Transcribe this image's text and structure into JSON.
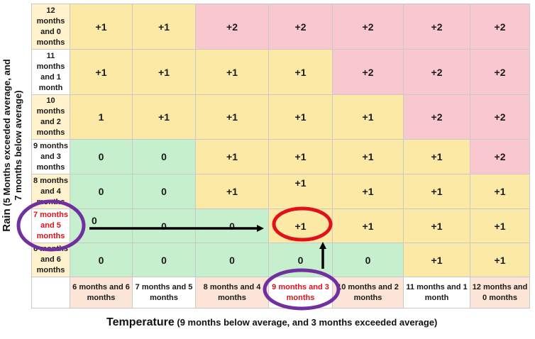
{
  "y_axis": {
    "title": "Rain",
    "subtitle_line1": "(5 Months exceeded average, and",
    "subtitle_line2": "7 months below average)"
  },
  "x_axis": {
    "title": "Temperature",
    "subtitle": "(9 months below average, and 3 months exceeded average)"
  },
  "row_labels": [
    "12 months and 0 months",
    "11 months and 1 month",
    "10 months and 2 months",
    "9 months and 3 months",
    "8 months and 4 months",
    "7 months and 5 months",
    "6 months and 6 months"
  ],
  "col_labels": [
    "6 months and 6 months",
    "7 months and 5 months",
    "8 months and 4 months",
    "9 months and 3 months",
    "10 months and 2 months",
    "11 months and 1 month",
    "12 months and 0 months"
  ],
  "rows": [
    [
      "+1",
      "+1",
      "+2",
      "+2",
      "+2",
      "+2",
      "+2"
    ],
    [
      "+1",
      "+1",
      "+1",
      "+1",
      "+2",
      "+2",
      "+2"
    ],
    [
      "1",
      "+1",
      "+1",
      "+1",
      "+1",
      "+2",
      "+2"
    ],
    [
      "0",
      "0",
      "+1",
      "+1",
      "+1",
      "+1",
      "+2"
    ],
    [
      "0",
      "0",
      "+1",
      "+1",
      "+1",
      "+1",
      "+1"
    ],
    [
      "0",
      "0",
      "0",
      "+1",
      "+1",
      "+1",
      "+1"
    ],
    [
      "0",
      "0",
      "0",
      "0",
      "0",
      "+1",
      "+1"
    ]
  ],
  "colors": {
    "yellow": "#fde9a6",
    "pink": "#f9c8cf",
    "green": "#c6efce",
    "red_highlight": "#e0111b",
    "purple_highlight": "#7030a0",
    "arrow": "#000000"
  },
  "highlight": {
    "row_label": "7 months and 5 months",
    "col_label": "9 months and 3 months",
    "cell_value": "+1"
  }
}
